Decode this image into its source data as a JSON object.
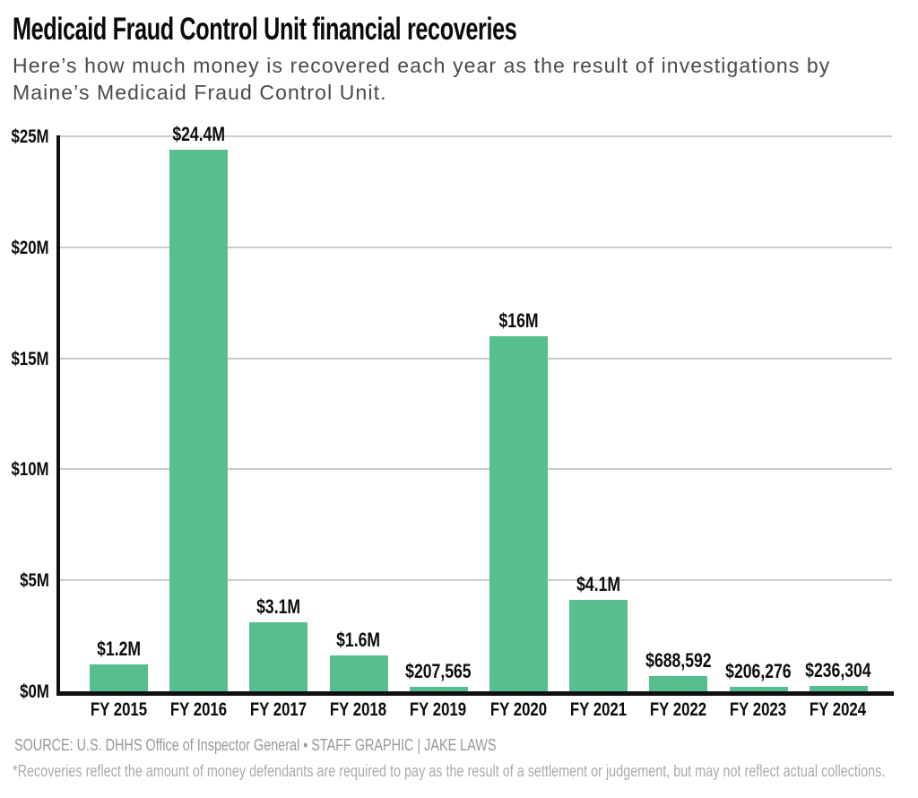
{
  "chart_data": {
    "type": "bar",
    "title": "Medicaid Fraud Control Unit financial recoveries",
    "subtitle": "Here’s how much money is recovered each year as the result of investigations by Maine’s Medicaid Fraud Control Unit.",
    "categories": [
      "FY 2015",
      "FY 2016",
      "FY 2017",
      "FY 2018",
      "FY 2019",
      "FY 2020",
      "FY 2021",
      "FY 2022",
      "FY 2023",
      "FY 2024"
    ],
    "values_usd": [
      1200000,
      24400000,
      3100000,
      1600000,
      207565,
      16000000,
      4100000,
      688592,
      206276,
      236304
    ],
    "values_millions": [
      1.2,
      24.4,
      3.1,
      1.6,
      0.207565,
      16,
      4.1,
      0.688592,
      0.206276,
      0.236304
    ],
    "bar_labels": [
      "$1.2M",
      "$24.4M",
      "$3.1M",
      "$1.6M",
      "$207,565",
      "$16M",
      "$4.1M",
      "$688,592",
      "$206,276",
      "$236,304"
    ],
    "y_ticks": [
      {
        "value": 25,
        "label": "$25M"
      },
      {
        "value": 20,
        "label": "$20M"
      },
      {
        "value": 15,
        "label": "$15M"
      },
      {
        "value": 10,
        "label": "$10M"
      },
      {
        "value": 5,
        "label": "$5M"
      },
      {
        "value": 0,
        "label": "$0M"
      }
    ],
    "ylim": [
      0,
      25
    ],
    "xlabel": "",
    "ylabel": "",
    "grid": true,
    "legend": false,
    "bar_color": "#57be8e",
    "gridline_color": "#cbcbcb",
    "axis_color": "#111111",
    "label_color": "#0d0d0d"
  },
  "footer": {
    "source": "SOURCE: U.S. DHHS Office of Inspector General • STAFF GRAPHIC | JAKE LAWS",
    "footnote": "*Recoveries reflect the amount of money defendants are required to pay as the result of a settlement or judgement, but may not reflect actual collections."
  }
}
